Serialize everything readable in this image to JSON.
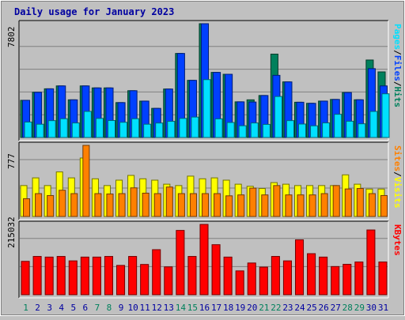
{
  "title": "Daily usage for January 2023",
  "colors": {
    "background": "#c0c0c0",
    "panel": "#c0c0c0",
    "title": "#0000a0",
    "axis_text": "#000000",
    "grid": "#808080",
    "hits": "#00805c",
    "files": "#0040ff",
    "pages": "#00e0ff",
    "visits": "#ffff00",
    "sites": "#ff8000",
    "kbytes": "#ff0000",
    "weekend_day": "#00805c",
    "weekday": "#0000a0"
  },
  "days": [
    "1",
    "2",
    "3",
    "4",
    "5",
    "6",
    "7",
    "8",
    "9",
    "10",
    "11",
    "12",
    "13",
    "14",
    "15",
    "16",
    "17",
    "18",
    "19",
    "20",
    "21",
    "22",
    "23",
    "24",
    "25",
    "26",
    "27",
    "28",
    "29",
    "30",
    "31"
  ],
  "weekend_days": [
    "1",
    "7",
    "8",
    "14",
    "15",
    "21",
    "22",
    "28",
    "29"
  ],
  "chart_data": [
    {
      "type": "bar",
      "panel": "hits-files-pages",
      "y_max_label": "7802",
      "ylim": [
        0,
        7802
      ],
      "right_labels": [
        "Pages",
        "/",
        "Files",
        "/",
        "Hits"
      ],
      "right_label_colors": [
        "#00e0ff",
        "#000000",
        "#0040ff",
        "#000000",
        "#00805c"
      ],
      "series": [
        {
          "name": "Hits",
          "values": [
            2549,
            3098,
            3338,
            3536,
            2583,
            3536,
            3399,
            3399,
            2392,
            3208,
            2495,
            1996,
            3323,
            5762,
            3918,
            7802,
            4463,
            4334,
            2444,
            2582,
            2878,
            5717,
            3812,
            2417,
            2342,
            2495,
            2609,
            3082,
            2586,
            5312,
            4497
          ]
        },
        {
          "name": "Files",
          "values": [
            2549,
            3098,
            3338,
            3536,
            2583,
            3536,
            3399,
            3399,
            2392,
            3208,
            2495,
            1996,
            3323,
            5762,
            3918,
            7802,
            4463,
            4334,
            2444,
            2431,
            2878,
            4261,
            3812,
            2417,
            2342,
            2495,
            2609,
            3082,
            2586,
            4721,
            3536
          ]
        },
        {
          "name": "Pages",
          "values": [
            1058,
            910,
            1156,
            1287,
            996,
            1788,
            1308,
            1164,
            1042,
            1287,
            910,
            992,
            1107,
            1308,
            1401,
            3968,
            1278,
            1028,
            805,
            996,
            898,
            2812,
            1157,
            923,
            801,
            1000,
            1590,
            1115,
            939,
            1787,
            2996
          ]
        }
      ]
    },
    {
      "type": "bar",
      "panel": "visits-sites",
      "y_max_label": "777",
      "ylim": [
        0,
        777
      ],
      "right_labels": [
        "Sites",
        "/",
        "Visits"
      ],
      "right_label_colors": [
        "#ff8000",
        "#000000",
        "#ffff00"
      ],
      "series": [
        {
          "name": "Visits",
          "values": [
            338,
            422,
            338,
            487,
            422,
            639,
            412,
            338,
            397,
            449,
            412,
            397,
            353,
            338,
            441,
            412,
            422,
            397,
            353,
            330,
            306,
            370,
            353,
            338,
            338,
            338,
            338,
            455,
            353,
            300,
            300
          ]
        },
        {
          "name": "Sites",
          "values": [
            194,
            250,
            229,
            287,
            250,
            777,
            250,
            246,
            250,
            313,
            255,
            250,
            322,
            250,
            250,
            250,
            250,
            226,
            236,
            310,
            236,
            338,
            236,
            236,
            236,
            250,
            338,
            301,
            306,
            250,
            229
          ]
        }
      ]
    },
    {
      "type": "bar",
      "panel": "kbytes",
      "y_max_label": "215032",
      "ylim": [
        0,
        215032
      ],
      "right_labels": [
        "KBytes"
      ],
      "right_label_colors": [
        "#ff0000"
      ],
      "series": [
        {
          "name": "KBytes",
          "values": [
            102043,
            117089,
            115119,
            117089,
            103520,
            115119,
            115119,
            117089,
            89630,
            117089,
            92575,
            137734,
            85167,
            196640,
            117089,
            215032,
            153025,
            115119,
            72916,
            97023,
            84426,
            117089,
            103520,
            167862,
            125542,
            115119,
            86152,
            93069,
            100074,
            198000,
            100074
          ]
        }
      ]
    }
  ]
}
